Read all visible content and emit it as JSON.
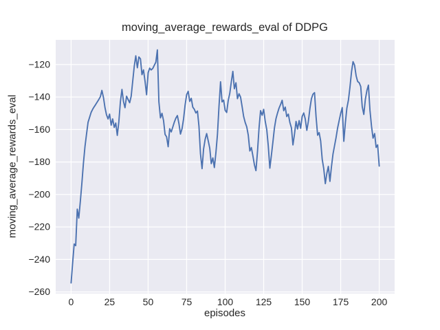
{
  "chart_data": {
    "type": "line",
    "title": "moving_average_rewards_eval of DDPG",
    "xlabel": "episodes",
    "ylabel": "moving_average_rewards_eval",
    "legend": "none",
    "grid": true,
    "background_color": "#eaeaf2",
    "grid_color": "#ffffff",
    "text_color": "#262626",
    "xlim": [
      -10,
      210
    ],
    "ylim": [
      -261,
      -104.8
    ],
    "x_ticks": [
      0,
      25,
      50,
      75,
      100,
      125,
      150,
      175,
      200
    ],
    "x_tick_labels": [
      "0",
      "25",
      "50",
      "75",
      "100",
      "125",
      "150",
      "175",
      "200"
    ],
    "y_ticks": [
      -120,
      -140,
      -160,
      -180,
      -200,
      -220,
      -240,
      -260
    ],
    "y_tick_labels": [
      "−120",
      "−140",
      "−160",
      "−180",
      "−200",
      "−220",
      "−240",
      "−260"
    ],
    "series": [
      {
        "name": "moving_average_rewards_eval",
        "color": "#4c72b0",
        "x_start": 0,
        "x_step": 1,
        "values": [
          -254.5,
          -242,
          -230.5,
          -231.5,
          -209,
          -214.5,
          -204,
          -193,
          -181,
          -170.5,
          -163,
          -155.5,
          -152.5,
          -149.5,
          -147.5,
          -146,
          -144.5,
          -143,
          -141.5,
          -139.8,
          -135.9,
          -140.3,
          -146.5,
          -150.9,
          -153.5,
          -150.5,
          -157.3,
          -153.5,
          -158.7,
          -156,
          -163.6,
          -155,
          -143,
          -135.3,
          -142.7,
          -146.6,
          -139.5,
          -141.5,
          -143.5,
          -139.5,
          -130.4,
          -121,
          -114.6,
          -122,
          -115.3,
          -116.5,
          -126.2,
          -123.3,
          -130.4,
          -138.6,
          -125,
          -122.2,
          -123.3,
          -122.4,
          -120.5,
          -118.5,
          -111,
          -142.9,
          -152.8,
          -150,
          -154.5,
          -163,
          -164.5,
          -170.6,
          -159.5,
          -161.5,
          -158.5,
          -155.5,
          -153,
          -151.4,
          -156.4,
          -162.8,
          -159.5,
          -153.5,
          -145,
          -138.5,
          -136.5,
          -142.7,
          -140.8,
          -146.2,
          -147.6,
          -149.8,
          -148.6,
          -158,
          -175,
          -184.1,
          -172,
          -166,
          -162.5,
          -167,
          -171.5,
          -181,
          -177.5,
          -183.4,
          -174,
          -163,
          -146,
          -130.6,
          -143,
          -141.9,
          -148.2,
          -149.5,
          -142,
          -137.8,
          -130.5,
          -124.2,
          -134.9,
          -131.2,
          -141,
          -138,
          -140,
          -146,
          -152,
          -155.6,
          -158.4,
          -163.4,
          -173.2,
          -171.1,
          -176.1,
          -181.8,
          -185.3,
          -173.2,
          -159,
          -148.4,
          -151.2,
          -147.6,
          -155,
          -160,
          -170,
          -183.8,
          -176,
          -167.5,
          -159,
          -153.4,
          -149.8,
          -146.8,
          -144.5,
          -142,
          -148.4,
          -146.2,
          -152,
          -150.5,
          -155.6,
          -159,
          -169.5,
          -163,
          -155,
          -159.7,
          -154.5,
          -159.3,
          -152,
          -149.8,
          -153.5,
          -160.5,
          -155,
          -147,
          -141,
          -138.3,
          -137.3,
          -152,
          -163.5,
          -161.9,
          -167,
          -178.4,
          -184.1,
          -193.3,
          -187,
          -182.7,
          -191.9,
          -183,
          -175,
          -170,
          -165,
          -159,
          -154.5,
          -150,
          -146.5,
          -167.3,
          -156,
          -146.9,
          -141.9,
          -134,
          -124.5,
          -118.2,
          -120.3,
          -126.9,
          -130.4,
          -131.2,
          -133.5,
          -146,
          -150.7,
          -141.5,
          -135.9,
          -132.7,
          -148,
          -158,
          -165.3,
          -162.5,
          -171,
          -169.5,
          -182.5
        ]
      }
    ]
  }
}
